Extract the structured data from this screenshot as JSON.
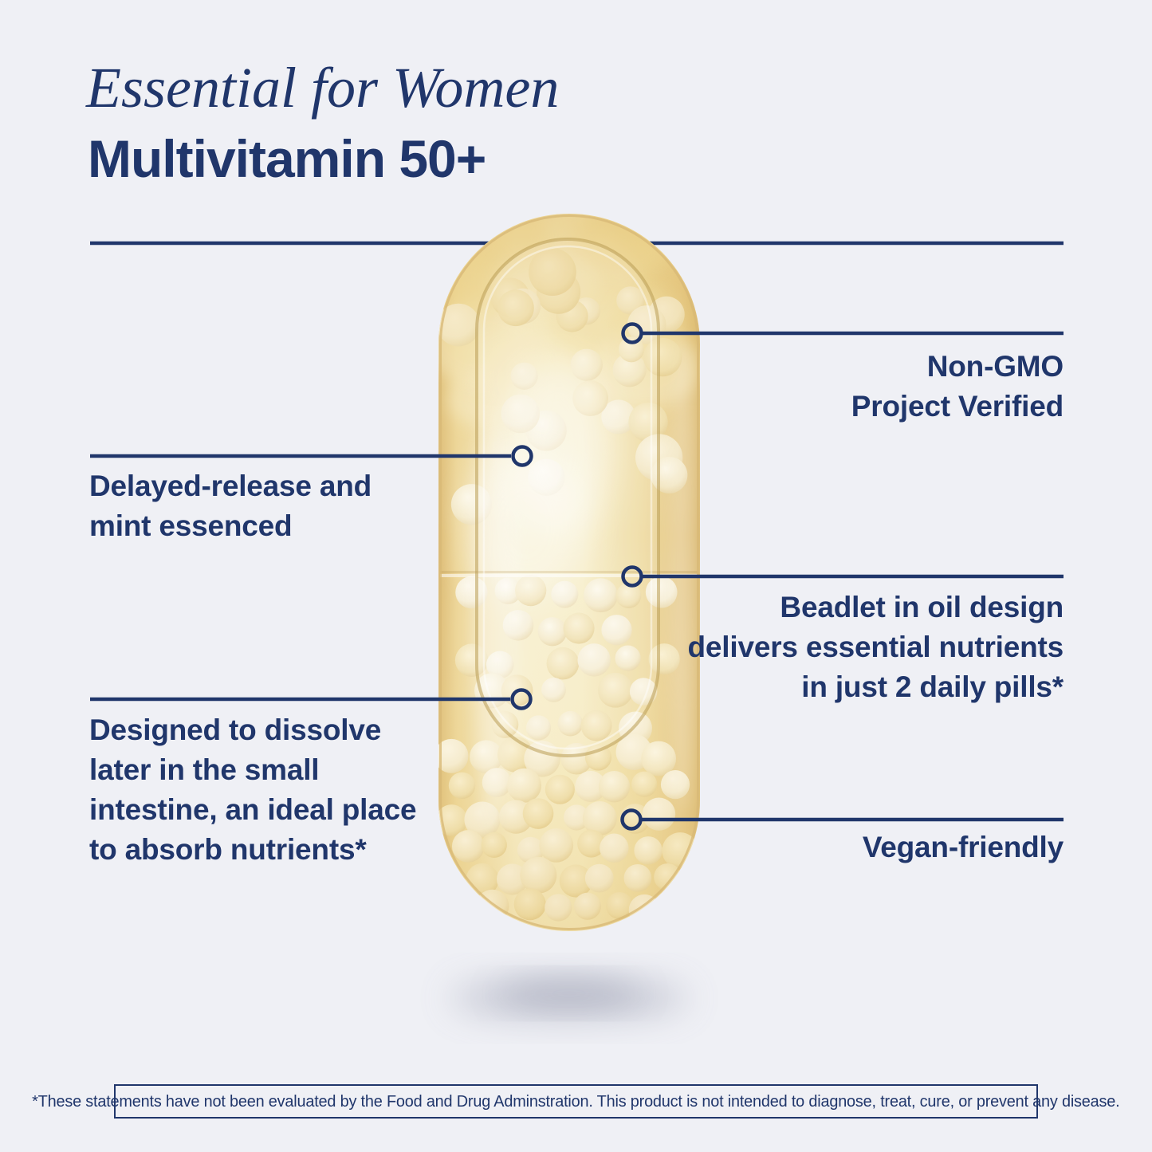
{
  "header": {
    "brand_line": "Essential for Women",
    "product_line": "Multivitamin 50+"
  },
  "callouts": [
    {
      "id": "non-gmo",
      "side": "right",
      "label": "Non-GMO\nProject Verified"
    },
    {
      "id": "delayed",
      "side": "left",
      "label": "Delayed-release and\nmint essenced"
    },
    {
      "id": "beadlet",
      "side": "right",
      "label": "Beadlet in oil design\ndelivers essential nutrients\nin just 2 daily pills*"
    },
    {
      "id": "dissolve",
      "side": "left",
      "label": "Designed to dissolve\nlater in the small\nintestine, an ideal place\nto absorb nutrients*"
    },
    {
      "id": "vegan",
      "side": "right",
      "label": "Vegan-friendly"
    }
  ],
  "disclaimer": "*These statements have not been evaluated by the Food and Drug Adminstration. This product is not intended to diagnose, treat, cure, or prevent any disease.",
  "colors": {
    "background": "#eff0f5",
    "navy": "#20366b",
    "capsule_gold": "#ecd494",
    "capsule_gold_deep": "#dcba72",
    "beadlet_ivory": "#f3e8c6",
    "oil_highlight": "#f7eecb",
    "shadow": "#8f93a8"
  }
}
